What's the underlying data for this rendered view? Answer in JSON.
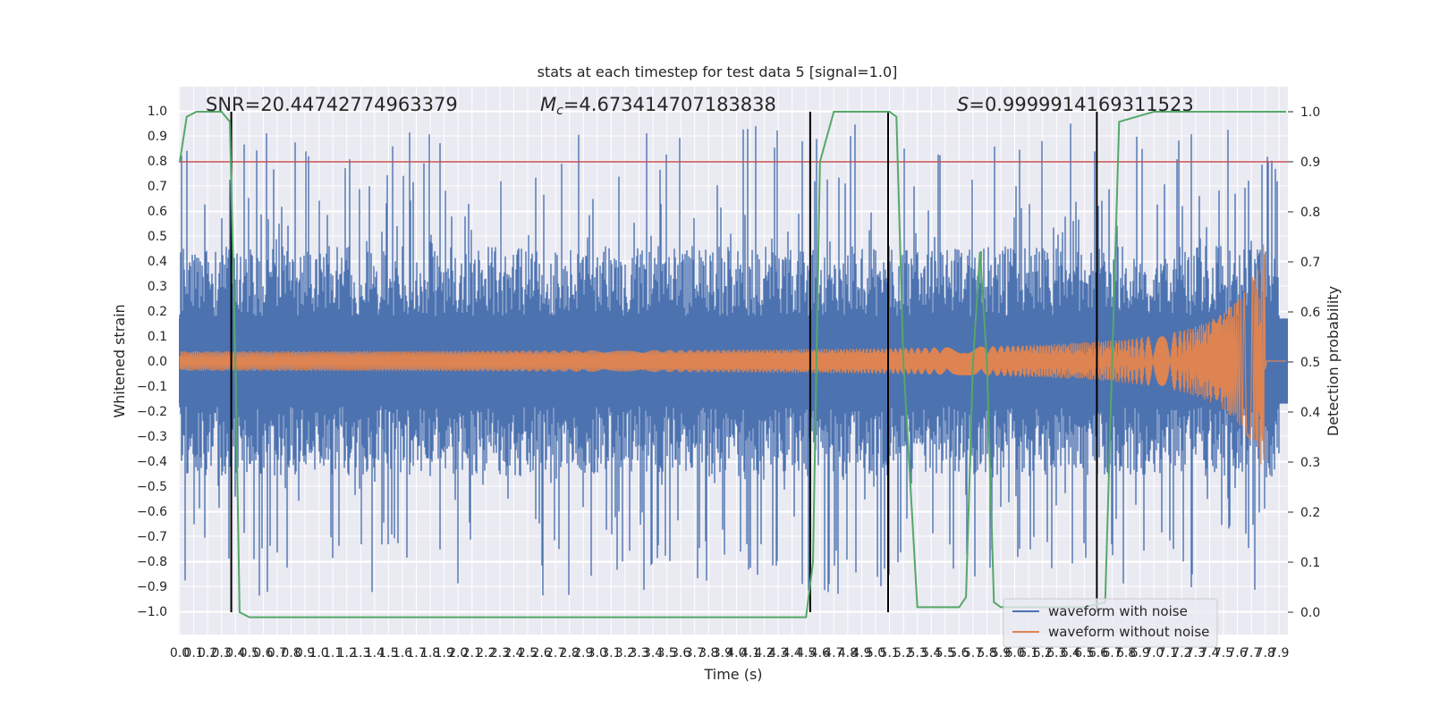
{
  "chart_data": {
    "type": "line",
    "title": "stats at each timestep for test data 5 [signal=1.0]",
    "xlabel": "Time (s)",
    "ylabel": "Whitened strain",
    "y2label": "Detection probability",
    "xlim": [
      0.0,
      7.95
    ],
    "ylim": [
      -1.1,
      1.1
    ],
    "y2lim": [
      -0.05,
      1.05
    ],
    "grid": true,
    "legend_position": "bottom-right",
    "x_ticks": [
      "0.0",
      "0.1",
      "0.2",
      "0.3",
      "0.4",
      "0.5",
      "0.6",
      "0.7",
      "0.8",
      "0.9",
      "1.0",
      "1.1",
      "1.2",
      "1.3",
      "1.4",
      "1.5",
      "1.6",
      "1.7",
      "1.8",
      "1.9",
      "2.0",
      "2.1",
      "2.2",
      "2.3",
      "2.4",
      "2.5",
      "2.6",
      "2.7",
      "2.8",
      "2.9",
      "3.0",
      "3.1",
      "3.2",
      "3.3",
      "3.4",
      "3.5",
      "3.6",
      "3.7",
      "3.8",
      "3.9",
      "4.0",
      "4.1",
      "4.2",
      "4.3",
      "4.4",
      "4.5",
      "4.6",
      "4.7",
      "4.8",
      "4.9",
      "5.0",
      "5.1",
      "5.2",
      "5.3",
      "5.4",
      "5.5",
      "5.6",
      "5.7",
      "5.8",
      "5.9",
      "6.0",
      "6.1",
      "6.2",
      "6.3",
      "6.4",
      "6.5",
      "6.6",
      "6.7",
      "6.8",
      "6.9",
      "7.0",
      "7.1",
      "7.2",
      "7.3",
      "7.4",
      "7.5",
      "7.6",
      "7.7",
      "7.8",
      "7.9"
    ],
    "y_ticks": [
      "1.0",
      "0.9",
      "0.8",
      "0.7",
      "0.6",
      "0.5",
      "0.4",
      "0.3",
      "0.2",
      "0.1",
      "0.0",
      "−0.1",
      "−0.2",
      "−0.3",
      "−0.4",
      "−0.5",
      "−0.6",
      "−0.7",
      "−0.8",
      "−0.9",
      "−1.0"
    ],
    "y2_ticks": [
      "1.0",
      "0.9",
      "0.8",
      "0.7",
      "0.6",
      "0.5",
      "0.4",
      "0.3",
      "0.2",
      "0.1",
      "0.0"
    ],
    "annotations": {
      "snr": "SNR=20.44742774963379",
      "mc_symbol": "M",
      "mc_sub": "c",
      "mc_value": "=4.673414707183838",
      "s_symbol": "S",
      "s_value": "=0.9999914169311523"
    },
    "series": [
      {
        "name": "waveform with noise",
        "color": "#4c72b0",
        "kind": "noise",
        "peak_ranges": [
          -1.0,
          1.0
        ]
      },
      {
        "name": "waveform without noise",
        "color": "#dd8452",
        "kind": "chirp",
        "start_amp": 0.035,
        "end_amp": 0.5,
        "merger_time": 7.8
      }
    ],
    "threshold": {
      "y2": 0.9,
      "color": "#c44e52"
    },
    "detection_probability": {
      "color": "#55a868",
      "x": [
        0.0,
        0.05,
        0.12,
        0.2,
        0.3,
        0.36,
        0.4,
        0.43,
        0.5,
        1.0,
        2.0,
        3.0,
        4.0,
        4.4,
        4.5,
        4.55,
        4.6,
        4.7,
        5.0,
        5.1,
        5.15,
        5.2,
        5.3,
        5.6,
        5.65,
        5.7,
        5.75,
        5.8,
        5.85,
        5.9,
        6.0,
        6.5,
        6.65,
        6.7,
        6.75,
        7.0,
        7.5,
        7.95
      ],
      "y": [
        0.9,
        0.99,
        1.0,
        1.0,
        1.0,
        0.98,
        0.5,
        0.0,
        -0.01,
        -0.01,
        -0.01,
        -0.01,
        -0.01,
        -0.01,
        -0.01,
        0.1,
        0.9,
        1.0,
        1.0,
        1.0,
        0.99,
        0.5,
        0.01,
        0.01,
        0.03,
        0.5,
        0.72,
        0.5,
        0.02,
        0.01,
        0.01,
        0.01,
        0.02,
        0.5,
        0.98,
        1.0,
        1.0,
        1.0
      ]
    },
    "vertical_markers": [
      0.37,
      4.53,
      5.09,
      6.59
    ],
    "legend": [
      "waveform with noise",
      "waveform without noise"
    ]
  }
}
